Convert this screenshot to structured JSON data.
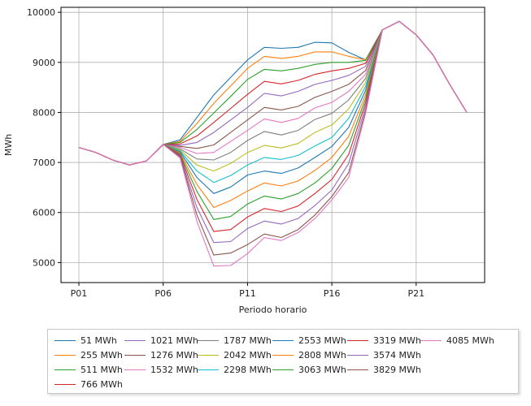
{
  "chart_data": {
    "type": "line",
    "xlabel": "Periodo horario",
    "ylabel": "MWh",
    "x_ticks": [
      "P01",
      "P06",
      "P11",
      "P16",
      "P21"
    ],
    "x_periods": [
      "P01",
      "P02",
      "P03",
      "P04",
      "P05",
      "P06",
      "P07",
      "P08",
      "P09",
      "P10",
      "P11",
      "P12",
      "P13",
      "P14",
      "P15",
      "P16",
      "P17",
      "P18",
      "P19",
      "P20",
      "P21",
      "P22",
      "P23",
      "P24"
    ],
    "ylim": [
      4600,
      10100
    ],
    "y_ticks": [
      5000,
      6000,
      7000,
      8000,
      9000,
      10000
    ],
    "grid": true,
    "legend_position": "below",
    "series": [
      {
        "name": "51 MWh",
        "color": "#1f77b4",
        "values": [
          7300,
          7200,
          7050,
          6950,
          7030,
          7360,
          7450,
          7900,
          8350,
          8700,
          9050,
          9300,
          9280,
          9300,
          9400,
          9390,
          9200,
          9050,
          9650,
          9820,
          9550,
          9150,
          8550,
          8000
        ]
      },
      {
        "name": "255 MWh",
        "color": "#ff7f0e",
        "values": [
          7300,
          7200,
          7050,
          6950,
          7030,
          7360,
          7420,
          7780,
          8180,
          8530,
          8880,
          9120,
          9080,
          9120,
          9210,
          9210,
          9120,
          9050,
          9650,
          9820,
          9550,
          9150,
          8550,
          8000
        ]
      },
      {
        "name": "511 MWh",
        "color": "#2ca02c",
        "values": [
          7300,
          7200,
          7050,
          6950,
          7030,
          7360,
          7400,
          7660,
          7990,
          8320,
          8660,
          8860,
          8830,
          8880,
          8960,
          9000,
          9000,
          9040,
          9650,
          9820,
          9550,
          9150,
          8550,
          8000
        ]
      },
      {
        "name": "766 MWh",
        "color": "#d62728",
        "values": [
          7300,
          7200,
          7050,
          6950,
          7030,
          7360,
          7370,
          7530,
          7800,
          8080,
          8360,
          8620,
          8570,
          8640,
          8760,
          8830,
          8880,
          8980,
          9650,
          9820,
          9550,
          9150,
          8550,
          8000
        ]
      },
      {
        "name": "1021 MWh",
        "color": "#9467bd",
        "values": [
          7300,
          7200,
          7050,
          6950,
          7030,
          7360,
          7340,
          7400,
          7600,
          7850,
          8100,
          8380,
          8330,
          8420,
          8560,
          8640,
          8740,
          8920,
          9650,
          9820,
          9550,
          9150,
          8550,
          8000
        ]
      },
      {
        "name": "1276 MWh",
        "color": "#8c564b",
        "values": [
          7300,
          7200,
          7050,
          6950,
          7030,
          7360,
          7320,
          7280,
          7350,
          7600,
          7850,
          8100,
          8050,
          8120,
          8300,
          8420,
          8560,
          8840,
          9650,
          9820,
          9550,
          9150,
          8550,
          8000
        ]
      },
      {
        "name": "1532 MWh",
        "color": "#e377c2",
        "values": [
          7300,
          7200,
          7050,
          6950,
          7030,
          7360,
          7300,
          7180,
          7200,
          7420,
          7640,
          7870,
          7800,
          7880,
          8090,
          8200,
          8420,
          8760,
          9650,
          9820,
          9550,
          9150,
          8550,
          8000
        ]
      },
      {
        "name": "1787 MWh",
        "color": "#7f7f7f",
        "values": [
          7300,
          7200,
          7050,
          6950,
          7030,
          7360,
          7270,
          7070,
          7050,
          7200,
          7440,
          7620,
          7550,
          7640,
          7860,
          7980,
          8250,
          8680,
          9650,
          9820,
          9550,
          9150,
          8550,
          8000
        ]
      },
      {
        "name": "2042 MWh",
        "color": "#bcbd22",
        "values": [
          7300,
          7200,
          7050,
          6950,
          7030,
          7360,
          7250,
          6950,
          6830,
          6980,
          7200,
          7340,
          7290,
          7380,
          7600,
          7750,
          8070,
          8600,
          9650,
          9820,
          9550,
          9150,
          8550,
          8000
        ]
      },
      {
        "name": "2298 MWh",
        "color": "#17becf",
        "values": [
          7300,
          7200,
          7050,
          6950,
          7030,
          7360,
          7230,
          6830,
          6600,
          6740,
          6950,
          7100,
          7060,
          7140,
          7330,
          7500,
          7880,
          8520,
          9650,
          9820,
          9550,
          9150,
          8550,
          8000
        ]
      },
      {
        "name": "2553 MWh",
        "color": "#1f77b4",
        "values": [
          7300,
          7200,
          7050,
          6950,
          7030,
          7360,
          7210,
          6700,
          6380,
          6510,
          6750,
          6830,
          6780,
          6890,
          7100,
          7320,
          7700,
          8440,
          9650,
          9820,
          9550,
          9150,
          8550,
          8000
        ]
      },
      {
        "name": "2808 MWh",
        "color": "#ff7f0e",
        "values": [
          7300,
          7200,
          7050,
          6950,
          7030,
          7360,
          7190,
          6560,
          6100,
          6240,
          6430,
          6590,
          6530,
          6630,
          6840,
          7100,
          7520,
          8360,
          9650,
          9820,
          9550,
          9150,
          8550,
          8000
        ]
      },
      {
        "name": "3063 MWh",
        "color": "#2ca02c",
        "values": [
          7300,
          7200,
          7050,
          6950,
          7030,
          7360,
          7170,
          6420,
          5860,
          5920,
          6170,
          6330,
          6270,
          6380,
          6590,
          6880,
          7340,
          8280,
          9650,
          9820,
          9550,
          9150,
          8550,
          8000
        ]
      },
      {
        "name": "3319 MWh",
        "color": "#d62728",
        "values": [
          7300,
          7200,
          7050,
          6950,
          7030,
          7360,
          7150,
          6260,
          5620,
          5660,
          5910,
          6080,
          6020,
          6130,
          6380,
          6660,
          7160,
          8200,
          9650,
          9820,
          9550,
          9150,
          8550,
          8000
        ]
      },
      {
        "name": "3574 MWh",
        "color": "#9467bd",
        "values": [
          7300,
          7200,
          7050,
          6950,
          7030,
          7360,
          7130,
          6100,
          5400,
          5420,
          5680,
          5830,
          5770,
          5880,
          6140,
          6450,
          6980,
          8120,
          9650,
          9820,
          9550,
          9150,
          8550,
          8000
        ]
      },
      {
        "name": "3829 MWh",
        "color": "#8c564b",
        "values": [
          7300,
          7200,
          7050,
          6950,
          7030,
          7360,
          7110,
          5950,
          5150,
          5190,
          5360,
          5570,
          5500,
          5660,
          5950,
          6320,
          6800,
          8040,
          9650,
          9820,
          9550,
          9150,
          8550,
          8000
        ]
      },
      {
        "name": "4085 MWh",
        "color": "#e377c2",
        "values": [
          7300,
          7200,
          7050,
          6950,
          7030,
          7360,
          7090,
          5820,
          4930,
          4940,
          5180,
          5500,
          5440,
          5600,
          5880,
          6250,
          6700,
          7980,
          9650,
          9820,
          9550,
          9150,
          8550,
          8000
        ]
      }
    ]
  }
}
